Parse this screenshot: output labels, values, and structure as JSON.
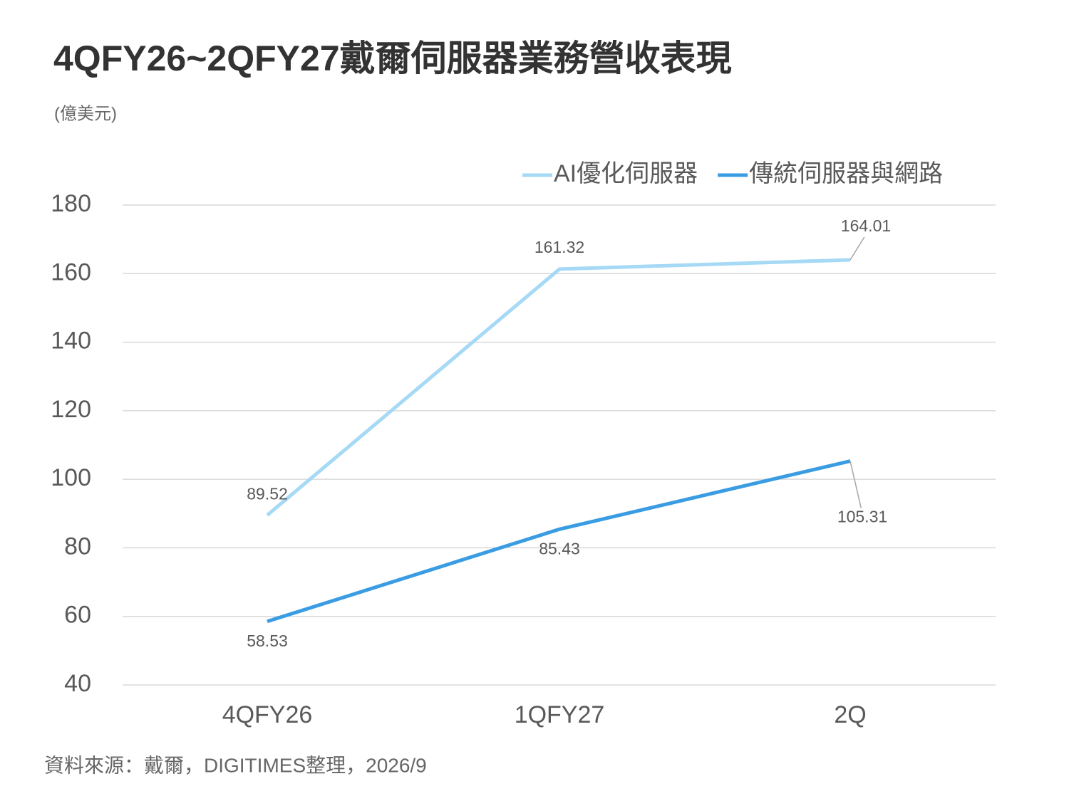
{
  "chart_data": {
    "type": "line",
    "title": "4QFY26~2QFY27戴爾伺服器業務營收表現",
    "unit": "(億美元)",
    "source": "資料來源：戴爾，DIGITIMES整理，2026/9",
    "categories": [
      "4QFY26",
      "1QFY27",
      "2Q"
    ],
    "series": [
      {
        "name": "AI優化伺服器",
        "color": "#a6d9f5",
        "values": [
          89.52,
          161.32,
          164.01
        ]
      },
      {
        "name": "傳統伺服器與網路",
        "color": "#3a9ce2",
        "values": [
          58.53,
          85.43,
          105.31
        ]
      }
    ],
    "ylim": [
      40,
      180
    ],
    "yticks": [
      40,
      60,
      80,
      100,
      120,
      140,
      160,
      180
    ],
    "grid": true,
    "legend": "top-right"
  }
}
